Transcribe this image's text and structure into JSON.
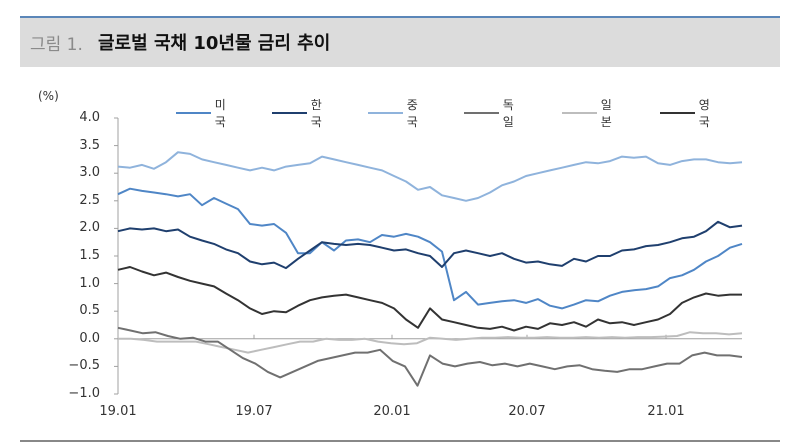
{
  "header": {
    "figure_label": "그림 1.",
    "title": "글로벌 국채 10년물 금리 추이"
  },
  "chart_data": {
    "type": "line",
    "title": "글로벌 국채 10년물 금리 추이",
    "ylabel": "(%)",
    "xlabel": "",
    "ylim": [
      -1.0,
      4.0
    ],
    "yticks": [
      "4.0",
      "3.5",
      "3.0",
      "2.5",
      "2.0",
      "1.5",
      "1.0",
      "0.5",
      "0.0",
      "−0.5",
      "−1.0"
    ],
    "xticks": [
      "19.01",
      "19.07",
      "20.01",
      "20.07",
      "21.01"
    ],
    "grid": false,
    "legend_position": "top",
    "x_semimonthly_from": "2019-01",
    "series": [
      {
        "name": "미국",
        "color": "#4f86c6",
        "width": 2,
        "values": [
          2.62,
          2.72,
          2.68,
          2.65,
          2.62,
          2.58,
          2.62,
          2.42,
          2.55,
          2.45,
          2.35,
          2.08,
          2.05,
          2.08,
          1.92,
          1.55,
          1.55,
          1.75,
          1.6,
          1.78,
          1.8,
          1.75,
          1.88,
          1.85,
          1.9,
          1.85,
          1.75,
          1.58,
          0.7,
          0.85,
          0.62,
          0.65,
          0.68,
          0.7,
          0.65,
          0.72,
          0.6,
          0.55,
          0.62,
          0.7,
          0.68,
          0.78,
          0.85,
          0.88,
          0.9,
          0.95,
          1.1,
          1.15,
          1.25,
          1.4,
          1.5,
          1.65,
          1.72
        ]
      },
      {
        "name": "한국",
        "color": "#1f3f6e",
        "width": 2,
        "values": [
          1.95,
          2.0,
          1.98,
          2.0,
          1.95,
          1.98,
          1.85,
          1.78,
          1.72,
          1.62,
          1.55,
          1.4,
          1.35,
          1.38,
          1.28,
          1.45,
          1.6,
          1.75,
          1.72,
          1.7,
          1.72,
          1.7,
          1.65,
          1.6,
          1.62,
          1.55,
          1.5,
          1.3,
          1.55,
          1.6,
          1.55,
          1.5,
          1.55,
          1.45,
          1.38,
          1.4,
          1.35,
          1.32,
          1.45,
          1.4,
          1.5,
          1.5,
          1.6,
          1.62,
          1.68,
          1.7,
          1.75,
          1.82,
          1.85,
          1.95,
          2.12,
          2.02,
          2.05
        ]
      },
      {
        "name": "중국",
        "color": "#8fb3dc",
        "width": 2,
        "values": [
          3.12,
          3.1,
          3.15,
          3.08,
          3.2,
          3.38,
          3.35,
          3.25,
          3.2,
          3.15,
          3.1,
          3.05,
          3.1,
          3.05,
          3.12,
          3.15,
          3.18,
          3.3,
          3.25,
          3.2,
          3.15,
          3.1,
          3.05,
          2.95,
          2.85,
          2.7,
          2.75,
          2.6,
          2.55,
          2.5,
          2.55,
          2.65,
          2.78,
          2.85,
          2.95,
          3.0,
          3.05,
          3.1,
          3.15,
          3.2,
          3.18,
          3.22,
          3.3,
          3.28,
          3.3,
          3.18,
          3.15,
          3.22,
          3.25,
          3.25,
          3.2,
          3.18,
          3.2
        ]
      },
      {
        "name": "독일",
        "color": "#707070",
        "width": 2,
        "values": [
          0.2,
          0.15,
          0.1,
          0.12,
          0.05,
          0.0,
          0.02,
          -0.05,
          -0.05,
          -0.2,
          -0.35,
          -0.45,
          -0.6,
          -0.7,
          -0.6,
          -0.5,
          -0.4,
          -0.35,
          -0.3,
          -0.25,
          -0.25,
          -0.2,
          -0.4,
          -0.5,
          -0.85,
          -0.3,
          -0.45,
          -0.5,
          -0.45,
          -0.42,
          -0.48,
          -0.45,
          -0.5,
          -0.45,
          -0.5,
          -0.55,
          -0.5,
          -0.48,
          -0.55,
          -0.58,
          -0.6,
          -0.55,
          -0.55,
          -0.5,
          -0.45,
          -0.45,
          -0.3,
          -0.25,
          -0.3,
          -0.3,
          -0.33
        ]
      },
      {
        "name": "일본",
        "color": "#bdbdbd",
        "width": 2,
        "values": [
          0.0,
          0.0,
          -0.02,
          -0.05,
          -0.05,
          -0.05,
          -0.05,
          -0.1,
          -0.15,
          -0.2,
          -0.25,
          -0.2,
          -0.15,
          -0.1,
          -0.05,
          -0.05,
          0.0,
          -0.02,
          -0.02,
          0.0,
          -0.05,
          -0.08,
          -0.1,
          -0.08,
          0.02,
          0.0,
          -0.02,
          0.0,
          0.02,
          0.02,
          0.03,
          0.02,
          0.02,
          0.03,
          0.02,
          0.02,
          0.03,
          0.02,
          0.03,
          0.02,
          0.03,
          0.03,
          0.04,
          0.05,
          0.12,
          0.1,
          0.1,
          0.08,
          0.1
        ]
      },
      {
        "name": "영국",
        "color": "#333333",
        "width": 2,
        "values": [
          1.25,
          1.3,
          1.22,
          1.15,
          1.2,
          1.12,
          1.05,
          1.0,
          0.95,
          0.82,
          0.7,
          0.55,
          0.45,
          0.5,
          0.48,
          0.6,
          0.7,
          0.75,
          0.78,
          0.8,
          0.75,
          0.7,
          0.65,
          0.55,
          0.35,
          0.2,
          0.55,
          0.35,
          0.3,
          0.25,
          0.2,
          0.18,
          0.22,
          0.15,
          0.22,
          0.18,
          0.28,
          0.25,
          0.3,
          0.22,
          0.35,
          0.28,
          0.3,
          0.25,
          0.3,
          0.35,
          0.45,
          0.65,
          0.75,
          0.82,
          0.78,
          0.8,
          0.8
        ]
      }
    ]
  }
}
